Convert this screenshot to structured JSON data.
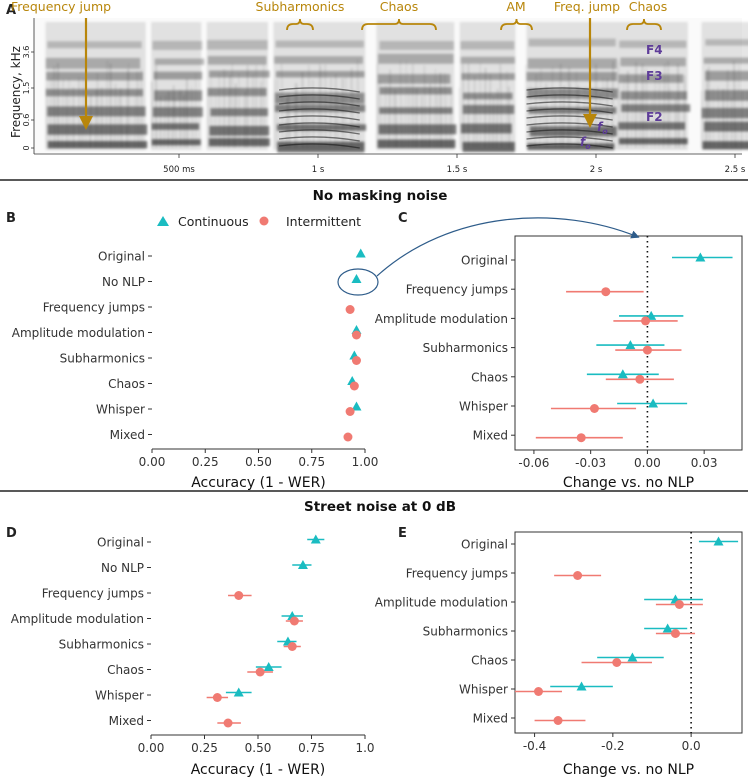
{
  "colors": {
    "continuous": "#1ABCC1",
    "intermittent": "#F07A72",
    "annotation": "#B8860B",
    "formant": "#5E3C99",
    "arrow": "#2E5C8A",
    "text": "#222222",
    "axis": "#333333"
  },
  "panel_labels": {
    "a": "A",
    "b": "B",
    "c": "C",
    "d": "D",
    "e": "E"
  },
  "section_titles": {
    "top": "No masking noise",
    "bottom": "Street noise at 0 dB"
  },
  "spectrogram": {
    "ylabel": "Frequency, kHz",
    "yticks": [
      "3.6",
      "1.5",
      "0.6",
      "0"
    ],
    "xticks": [
      "500 ms",
      "1 s",
      "1.5 s",
      "2 s",
      "2.5 s"
    ],
    "annotations": [
      "Frequency jump",
      "Subharmonics",
      "Chaos",
      "AM",
      "Freq. jump",
      "Chaos"
    ],
    "formants": [
      "F4",
      "F3",
      "F2"
    ],
    "fo_labels": [
      "f",
      "o",
      "f",
      "o"
    ]
  },
  "legend": {
    "continuous": "Continuous",
    "intermittent": "Intermittent"
  },
  "chart_data": [
    {
      "id": "B",
      "type": "scatter",
      "title": "No masking noise",
      "xlabel": "Accuracy (1 - WER)",
      "xlim": [
        0,
        1
      ],
      "xticks": [
        "0.00",
        "0.25",
        "0.50",
        "0.75",
        "1.00"
      ],
      "xtick_values": [
        0,
        0.25,
        0.5,
        0.75,
        1.0
      ],
      "categories": [
        "Original",
        "No NLP",
        "Frequency jumps",
        "Amplitude modulation",
        "Subharmonics",
        "Chaos",
        "Whisper",
        "Mixed"
      ],
      "series": [
        {
          "name": "Continuous",
          "marker": "triangle",
          "values": [
            0.98,
            0.96,
            null,
            0.96,
            0.95,
            0.94,
            0.96,
            null
          ]
        },
        {
          "name": "Intermittent",
          "marker": "circle",
          "values": [
            null,
            null,
            0.93,
            0.96,
            0.96,
            0.95,
            0.93,
            0.92
          ]
        }
      ]
    },
    {
      "id": "C",
      "type": "scatter",
      "xlabel": "Change vs. no NLP",
      "xlim": [
        -0.07,
        0.05
      ],
      "xticks": [
        "-0.06",
        "-0.03",
        "0.00",
        "0.03"
      ],
      "xtick_values": [
        -0.06,
        -0.03,
        0.0,
        0.03
      ],
      "reference_line": 0,
      "categories": [
        "Original",
        "Frequency jumps",
        "Amplitude modulation",
        "Subharmonics",
        "Chaos",
        "Whisper",
        "Mixed"
      ],
      "series": [
        {
          "name": "Continuous",
          "marker": "triangle",
          "values": [
            0.028,
            null,
            0.002,
            -0.009,
            -0.013,
            0.003,
            null
          ],
          "lower": [
            0.013,
            null,
            -0.015,
            -0.027,
            -0.032,
            -0.016,
            null
          ],
          "upper": [
            0.045,
            null,
            0.019,
            0.009,
            0.006,
            0.021,
            null
          ]
        },
        {
          "name": "Intermittent",
          "marker": "circle",
          "values": [
            null,
            -0.022,
            -0.001,
            0.0,
            -0.004,
            -0.028,
            -0.035
          ],
          "lower": [
            null,
            -0.043,
            -0.018,
            -0.017,
            -0.022,
            -0.051,
            -0.059
          ],
          "upper": [
            null,
            -0.002,
            0.016,
            0.018,
            0.014,
            -0.006,
            -0.013
          ]
        }
      ]
    },
    {
      "id": "D",
      "type": "scatter",
      "title": "Street noise at 0 dB",
      "xlabel": "Accuracy (1 - WER)",
      "xlim": [
        0,
        1
      ],
      "xticks": [
        "0.00",
        "0.25",
        "0.50",
        "0.75",
        "1.0"
      ],
      "xtick_values": [
        0,
        0.25,
        0.5,
        0.75,
        1.0
      ],
      "categories": [
        "Original",
        "No NLP",
        "Frequency jumps",
        "Amplitude modulation",
        "Subharmonics",
        "Chaos",
        "Whisper",
        "Mixed"
      ],
      "series": [
        {
          "name": "Continuous",
          "marker": "triangle",
          "values": [
            0.77,
            0.71,
            null,
            0.66,
            0.64,
            0.55,
            0.41,
            null
          ],
          "lower": [
            0.73,
            0.66,
            null,
            0.61,
            0.59,
            0.49,
            0.35,
            null
          ],
          "upper": [
            0.81,
            0.75,
            null,
            0.71,
            0.68,
            0.61,
            0.47,
            null
          ]
        },
        {
          "name": "Intermittent",
          "marker": "circle",
          "values": [
            null,
            null,
            0.41,
            0.67,
            0.66,
            0.51,
            0.31,
            0.36
          ],
          "lower": [
            null,
            null,
            0.36,
            0.63,
            0.62,
            0.45,
            0.26,
            0.31
          ],
          "upper": [
            null,
            null,
            0.47,
            0.71,
            0.7,
            0.57,
            0.36,
            0.42
          ]
        }
      ]
    },
    {
      "id": "E",
      "type": "scatter",
      "xlabel": "Change vs. no NLP",
      "xlim": [
        -0.45,
        0.13
      ],
      "xticks": [
        "-0.4",
        "-0.2",
        "0.0"
      ],
      "xtick_values": [
        -0.4,
        -0.2,
        0.0
      ],
      "reference_line": 0,
      "categories": [
        "Original",
        "Frequency jumps",
        "Amplitude modulation",
        "Subharmonics",
        "Chaos",
        "Whisper",
        "Mixed"
      ],
      "series": [
        {
          "name": "Continuous",
          "marker": "triangle",
          "values": [
            0.07,
            null,
            -0.04,
            -0.06,
            -0.15,
            -0.28,
            null
          ],
          "lower": [
            0.02,
            null,
            -0.12,
            -0.12,
            -0.24,
            -0.36,
            null
          ],
          "upper": [
            0.12,
            null,
            0.03,
            -0.01,
            -0.07,
            -0.2,
            null
          ]
        },
        {
          "name": "Intermittent",
          "marker": "circle",
          "values": [
            null,
            -0.29,
            -0.03,
            -0.04,
            -0.19,
            -0.39,
            -0.34
          ],
          "lower": [
            null,
            -0.35,
            -0.09,
            -0.09,
            -0.28,
            -0.45,
            -0.4
          ],
          "upper": [
            null,
            -0.23,
            0.03,
            0.01,
            -0.1,
            -0.33,
            -0.27
          ]
        }
      ]
    }
  ]
}
